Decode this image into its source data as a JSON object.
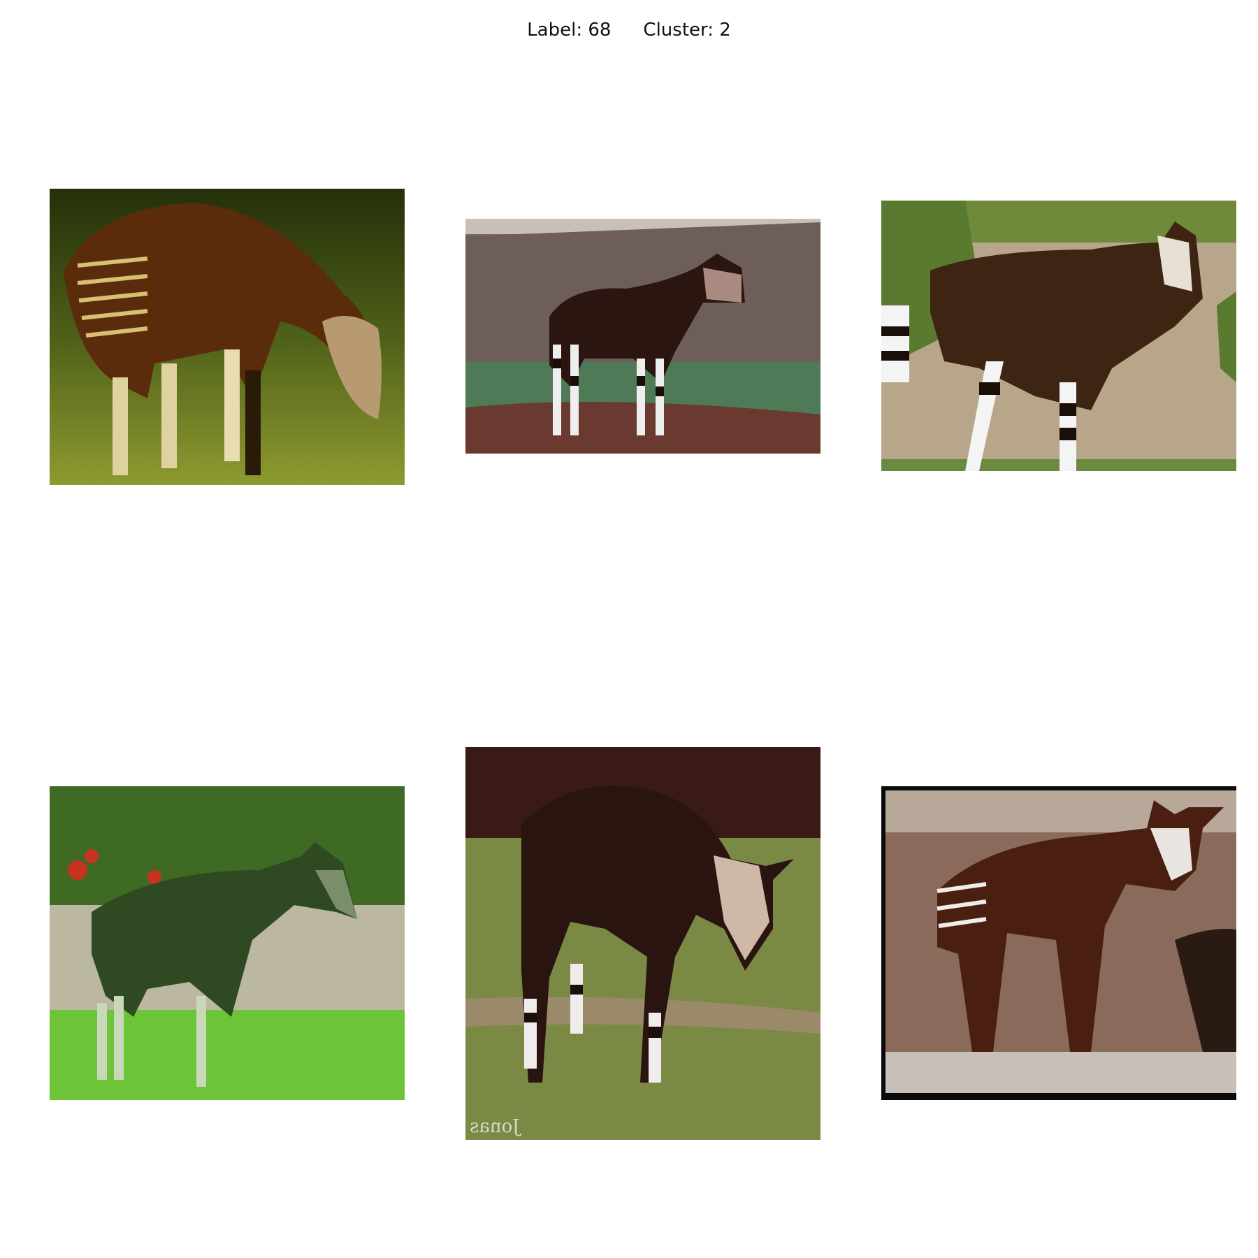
{
  "header": {
    "label_text": "Label: 68",
    "cluster_text": "Cluster: 2"
  },
  "images": [
    {
      "subject": "okapi grazing on grass",
      "watermark": ""
    },
    {
      "subject": "okapi standing in front of rock wall",
      "watermark": ""
    },
    {
      "subject": "okapi walking past stone wall with foliage",
      "watermark": ""
    },
    {
      "subject": "okapi standing on green lawn",
      "watermark": ""
    },
    {
      "subject": "okapi grazing on grass",
      "watermark": "Jonas"
    },
    {
      "subject": "two okapis near a concrete wall",
      "watermark": ""
    }
  ]
}
